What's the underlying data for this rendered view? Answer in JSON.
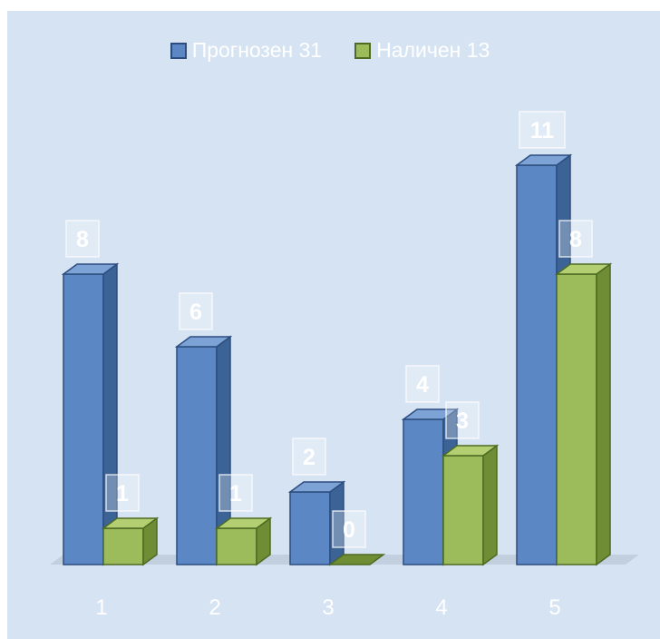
{
  "legend": {
    "series1_label": "Прогнозен 31",
    "series2_label": "Наличен 13"
  },
  "colors": {
    "background": "#d6e3f3",
    "series1_front": "#5b87c4",
    "series1_side": "#3c6396",
    "series1_top": "#7da2d6",
    "series1_edge": "#2d4d7e",
    "series2_front": "#9cbb5a",
    "series2_side": "#6f8d35",
    "series2_top": "#b3cf72",
    "series2_edge": "#4d6b23",
    "axis_text": "#ffffff"
  },
  "chart_data": {
    "type": "bar",
    "categories": [
      "1",
      "2",
      "3",
      "4",
      "5"
    ],
    "series": [
      {
        "name": "Прогнозен 31",
        "values": [
          8,
          6,
          2,
          4,
          11
        ]
      },
      {
        "name": "Наличен 13",
        "values": [
          1,
          1,
          0,
          3,
          8
        ]
      }
    ],
    "data_labels": true,
    "ylim": [
      0,
      11
    ],
    "style": "3d-clustered-column",
    "legend_position": "top",
    "grid": false
  }
}
